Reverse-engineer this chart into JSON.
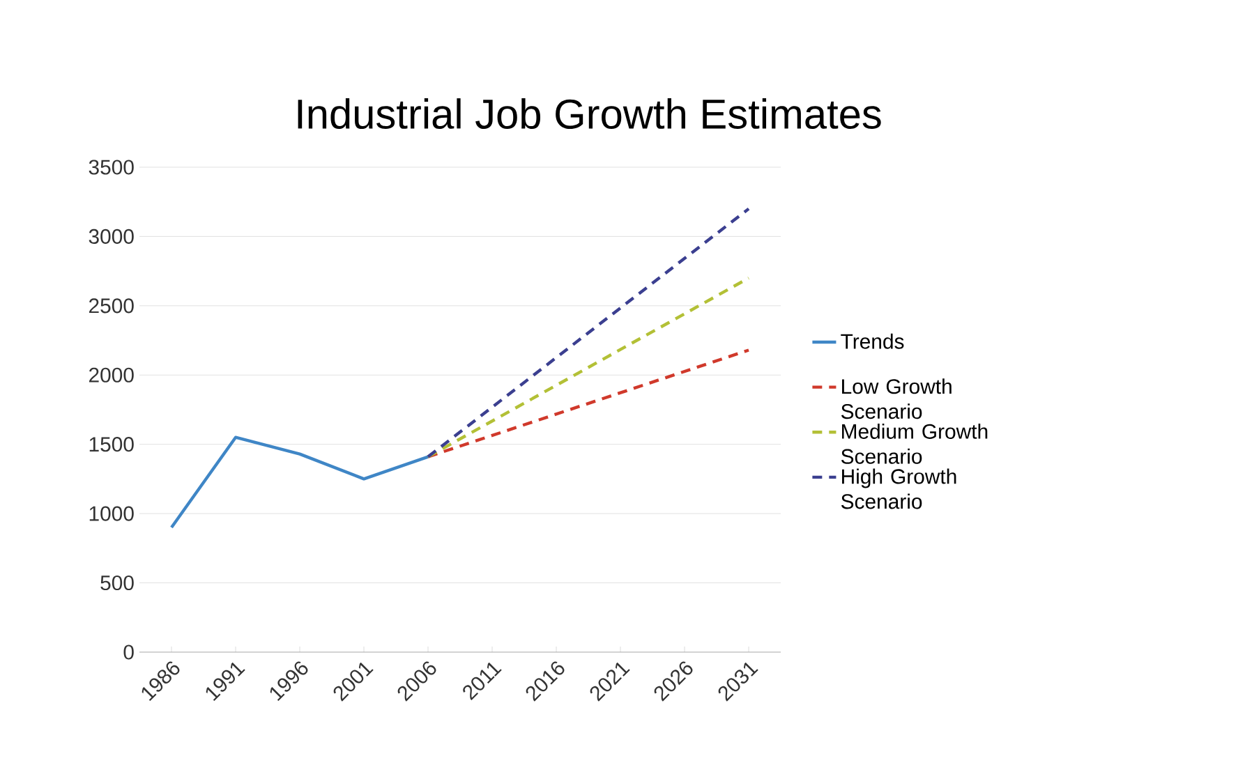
{
  "chart_data": {
    "type": "line",
    "title": "Industrial Job Growth Estimates",
    "categories": [
      "1986",
      "1991",
      "1996",
      "2001",
      "2006",
      "2011",
      "2016",
      "2021",
      "2026",
      "2031"
    ],
    "series": [
      {
        "name": "Trends",
        "color": "#3f86c6",
        "line_style": "solid",
        "values": [
          900,
          1550,
          1430,
          1250,
          1410,
          null,
          null,
          null,
          null,
          null
        ]
      },
      {
        "name": "Low Growth Scenario",
        "color": "#d0392b",
        "line_style": "dashed",
        "values": [
          null,
          null,
          null,
          null,
          1410,
          null,
          null,
          null,
          null,
          2180
        ]
      },
      {
        "name": "Medium Growth Scenario",
        "color": "#b3c036",
        "line_style": "dashed",
        "values": [
          null,
          null,
          null,
          null,
          1410,
          null,
          null,
          null,
          null,
          2700
        ]
      },
      {
        "name": "High Growth Scenario",
        "color": "#3b3f90",
        "line_style": "dashed",
        "values": [
          null,
          null,
          null,
          null,
          1410,
          null,
          null,
          null,
          null,
          3200
        ]
      }
    ],
    "ylim": [
      0,
      3500
    ],
    "yticks": [
      0,
      500,
      1000,
      1500,
      2000,
      2500,
      3000,
      3500
    ],
    "grid": "y",
    "legend": "right",
    "marker": "none"
  }
}
